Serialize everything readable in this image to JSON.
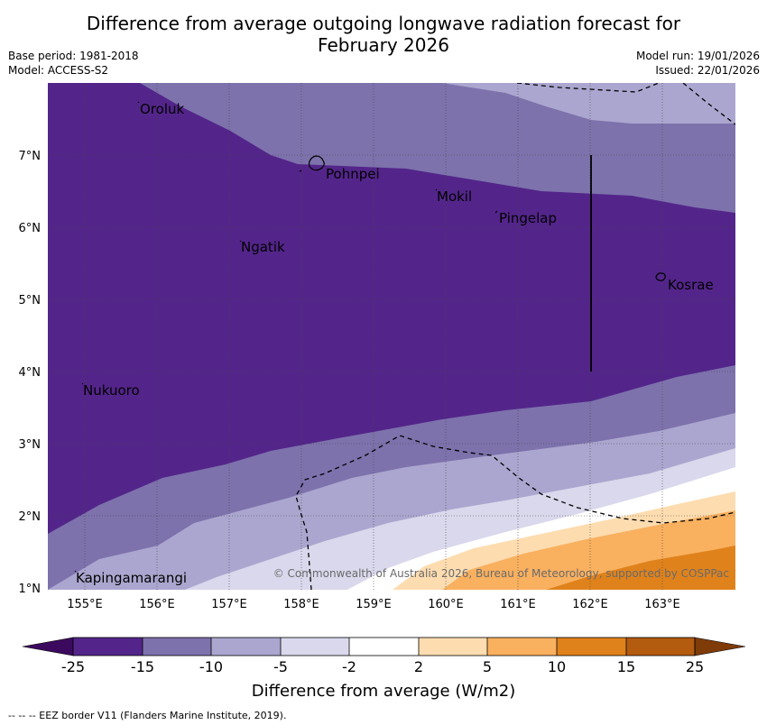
{
  "title_line1": "Difference from average outgoing longwave radiation forecast for",
  "title_line2": "February 2026",
  "base_period": "Base period: 1981-2018",
  "model": "Model: ACCESS-S2",
  "model_run": "Model run: 19/01/2026",
  "issued": "Issued: 22/01/2026",
  "copyright": "© Commonwealth of Australia 2026, Bureau of Meteorology, supported by COSPPac",
  "eez_note": "--  --  -- EEZ border V11 (Flanders Marine Institute, 2019).",
  "colorbar_label": "Difference from average (W/m2)",
  "lat_ticks": [
    "7°N",
    "6°N",
    "5°N",
    "4°N",
    "3°N",
    "2°N",
    "1°N"
  ],
  "lon_ticks": [
    "155°E",
    "156°E",
    "157°E",
    "158°E",
    "159°E",
    "160°E",
    "161°E",
    "162°E",
    "163°E"
  ],
  "colorbar_ticks": [
    "-25",
    "-15",
    "-10",
    "-5",
    "-2",
    "2",
    "5",
    "10",
    "15",
    "25"
  ],
  "colorbar_colors": [
    "#3b0a5e",
    "#53258a",
    "#7d72ac",
    "#aba6cf",
    "#d9d8ec",
    "#ffffff",
    "#fddcb0",
    "#f9b05f",
    "#e0821b",
    "#b35b0f",
    "#7f3b08"
  ],
  "places": [
    {
      "name": "Oroluk"
    },
    {
      "name": "Pohnpei"
    },
    {
      "name": "Mokil"
    },
    {
      "name": "Pingelap"
    },
    {
      "name": "Ngatik"
    },
    {
      "name": "Kosrae"
    },
    {
      "name": "Nukuoro"
    },
    {
      "name": "Kapingamarangi"
    }
  ]
}
